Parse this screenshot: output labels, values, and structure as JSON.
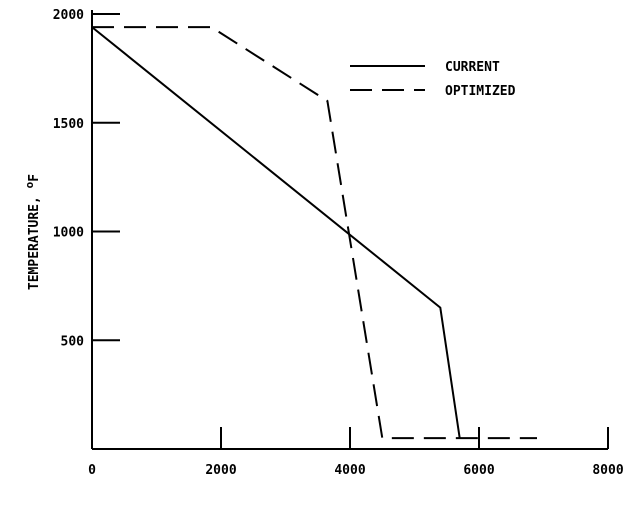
{
  "chart_data": {
    "type": "line",
    "xlabel": "",
    "ylabel": "TEMPERATURE, ",
    "ylabel_unit_sup": "o",
    "ylabel_unit": "F",
    "xlim": [
      0,
      8000
    ],
    "ylim": [
      0,
      2000
    ],
    "x_ticks": [
      0,
      2000,
      4000,
      6000,
      8000
    ],
    "x_tick_labels": [
      "0",
      "2000",
      "4000",
      "6000",
      "8000"
    ],
    "y_ticks": [
      500,
      1000,
      1500,
      2000
    ],
    "y_tick_labels": [
      "500",
      "1000",
      "1500",
      "2000"
    ],
    "grid": false,
    "legend_position": "top-right",
    "series": [
      {
        "name": "CURRENT",
        "style": "solid",
        "color": "#000000",
        "points": [
          [
            0,
            1940
          ],
          [
            5400,
            650
          ],
          [
            5700,
            50
          ]
        ]
      },
      {
        "name": "OPTIMIZED",
        "style": "dashed",
        "color": "#000000",
        "points": [
          [
            0,
            1940
          ],
          [
            1850,
            1940
          ],
          [
            3650,
            1600
          ],
          [
            4500,
            50
          ],
          [
            6900,
            50
          ]
        ]
      }
    ]
  }
}
